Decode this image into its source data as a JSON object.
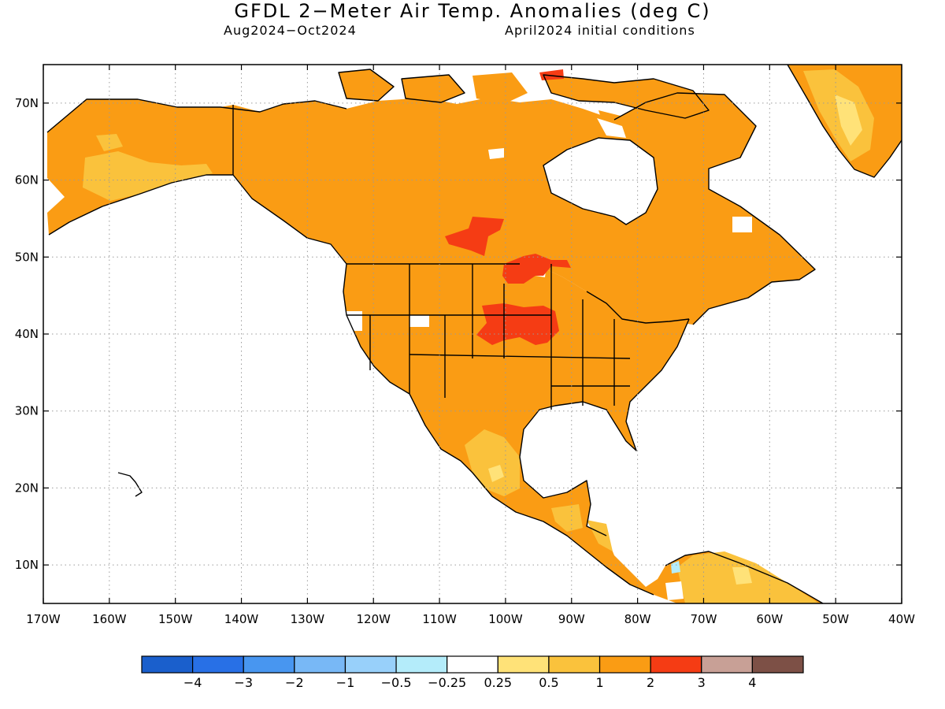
{
  "title": "GFDL 2−Meter Air Temp. Anomalies (deg C)",
  "subtitle_left": "Aug2024−Oct2024",
  "subtitle_right": "April2024 initial conditions",
  "lon_ticks": [
    {
      "value": -170,
      "label": "170W"
    },
    {
      "value": -160,
      "label": "160W"
    },
    {
      "value": -150,
      "label": "150W"
    },
    {
      "value": -140,
      "label": "140W"
    },
    {
      "value": -130,
      "label": "130W"
    },
    {
      "value": -120,
      "label": "120W"
    },
    {
      "value": -110,
      "label": "110W"
    },
    {
      "value": -100,
      "label": "100W"
    },
    {
      "value": -90,
      "label": "90W"
    },
    {
      "value": -80,
      "label": "80W"
    },
    {
      "value": -70,
      "label": "70W"
    },
    {
      "value": -60,
      "label": "60W"
    },
    {
      "value": -50,
      "label": "50W"
    },
    {
      "value": -40,
      "label": "40W"
    }
  ],
  "lat_ticks": [
    {
      "value": 10,
      "label": "10N"
    },
    {
      "value": 20,
      "label": "20N"
    },
    {
      "value": 30,
      "label": "30N"
    },
    {
      "value": 40,
      "label": "40N"
    },
    {
      "value": 50,
      "label": "50N"
    },
    {
      "value": 60,
      "label": "60N"
    },
    {
      "value": 70,
      "label": "70N"
    }
  ],
  "extent": {
    "lon_min": -170,
    "lon_max": -40,
    "lat_min": 5,
    "lat_max": 75
  },
  "colorbar": {
    "colors": [
      "#1a5fcc",
      "#2870e6",
      "#4896f0",
      "#78b8f6",
      "#98d0fa",
      "#b4ecfa",
      "#ffffff",
      "#ffe278",
      "#fac23c",
      "#fa9c14",
      "#f53c14",
      "#c8a096",
      "#7d5046"
    ],
    "labels": [
      "−4",
      "−3",
      "−2",
      "−1",
      "−0.5",
      "−0.25",
      "0.25",
      "0.5",
      "1",
      "2",
      "3",
      "4"
    ]
  },
  "colors": {
    "anom_1_2": "#fa9c14",
    "anom_05_1": "#fac23c",
    "anom_025_05": "#ffe278",
    "anom_2_3": "#f53c14",
    "anom_neg05_neg025": "#b4ecfa",
    "coast": "#000000",
    "grid": "#9a9a9a"
  }
}
